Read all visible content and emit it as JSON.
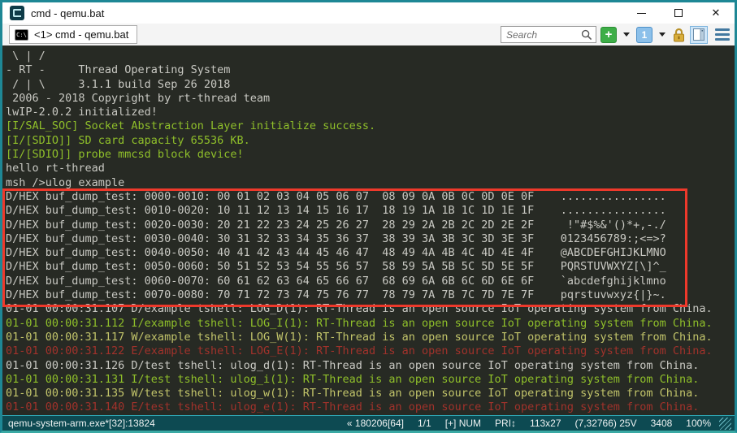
{
  "window": {
    "title": "cmd - qemu.bat",
    "close_glyph": "✕"
  },
  "tabbar": {
    "tab_label": "<1> cmd - qemu.bat",
    "search_placeholder": "Search",
    "new_console_label": "+",
    "console_number_label": "1",
    "cmd_icon_text": "C:\\"
  },
  "terminal": {
    "lines": [
      {
        "text": " \\ | /",
        "color": "default"
      },
      {
        "text": "- RT -     Thread Operating System",
        "color": "default"
      },
      {
        "text": " / | \\     3.1.1 build Sep 26 2018",
        "color": "default"
      },
      {
        "text": " 2006 - 2018 Copyright by rt-thread team",
        "color": "default"
      },
      {
        "text": "lwIP-2.0.2 initialized!",
        "color": "default"
      },
      {
        "text": "[I/SAL_SOC] Socket Abstraction Layer initialize success.",
        "color": "green"
      },
      {
        "text": "[I/[SDIO]] SD card capacity 65536 KB.",
        "color": "green"
      },
      {
        "text": "[I/[SDIO]] probe mmcsd block device!",
        "color": "green"
      },
      {
        "text": "hello rt-thread",
        "color": "default"
      },
      {
        "text": "msh />ulog example",
        "color": "default"
      },
      {
        "text": "D/HEX buf_dump_test: 0000-0010: 00 01 02 03 04 05 06 07  08 09 0A 0B 0C 0D 0E 0F    ................",
        "color": "default"
      },
      {
        "text": "D/HEX buf_dump_test: 0010-0020: 10 11 12 13 14 15 16 17  18 19 1A 1B 1C 1D 1E 1F    ................",
        "color": "default"
      },
      {
        "text": "D/HEX buf_dump_test: 0020-0030: 20 21 22 23 24 25 26 27  28 29 2A 2B 2C 2D 2E 2F     !\"#$%&'()*+,-./",
        "color": "default"
      },
      {
        "text": "D/HEX buf_dump_test: 0030-0040: 30 31 32 33 34 35 36 37  38 39 3A 3B 3C 3D 3E 3F    0123456789:;<=>?",
        "color": "default"
      },
      {
        "text": "D/HEX buf_dump_test: 0040-0050: 40 41 42 43 44 45 46 47  48 49 4A 4B 4C 4D 4E 4F    @ABCDEFGHIJKLMNO",
        "color": "default"
      },
      {
        "text": "D/HEX buf_dump_test: 0050-0060: 50 51 52 53 54 55 56 57  58 59 5A 5B 5C 5D 5E 5F    PQRSTUVWXYZ[\\]^_",
        "color": "default"
      },
      {
        "text": "D/HEX buf_dump_test: 0060-0070: 60 61 62 63 64 65 66 67  68 69 6A 6B 6C 6D 6E 6F    `abcdefghijklmno",
        "color": "default"
      },
      {
        "text": "D/HEX buf_dump_test: 0070-0080: 70 71 72 73 74 75 76 77  78 79 7A 7B 7C 7D 7E 7F    pqrstuvwxyz{|}~.",
        "color": "default"
      },
      {
        "text": "01-01 00:00:31.107 D/example tshell: LOG_D(1): RT-Thread is an open source IoT operating system from China.",
        "color": "default"
      },
      {
        "text": "01-01 00:00:31.112 I/example tshell: LOG_I(1): RT-Thread is an open source IoT operating system from China.",
        "color": "green"
      },
      {
        "text": "01-01 00:00:31.117 W/example tshell: LOG_W(1): RT-Thread is an open source IoT operating system from China.",
        "color": "yellow"
      },
      {
        "text": "01-01 00:00:31.122 E/example tshell: LOG_E(1): RT-Thread is an open source IoT operating system from China.",
        "color": "red"
      },
      {
        "text": "01-01 00:00:31.126 D/test tshell: ulog_d(1): RT-Thread is an open source IoT operating system from China.",
        "color": "default"
      },
      {
        "text": "01-01 00:00:31.131 I/test tshell: ulog_i(1): RT-Thread is an open source IoT operating system from China.",
        "color": "green"
      },
      {
        "text": "01-01 00:00:31.135 W/test tshell: ulog_w(1): RT-Thread is an open source IoT operating system from China.",
        "color": "yellow"
      },
      {
        "text": "01-01 00:00:31.140 E/test tshell: ulog_e(1): RT-Thread is an open source IoT operating system from China.",
        "color": "red"
      }
    ]
  },
  "statusbar": {
    "process": "qemu-system-arm.exe*[32]:13824",
    "items": [
      "« 180206[64]",
      "1/1",
      "[+] NUM",
      "PRI↕",
      "113x27",
      "(7,32766) 25V",
      "3408",
      "100%"
    ]
  },
  "colors": {
    "window_border": "#1e8795",
    "terminal_bg": "#272a24",
    "status_bg": "#0d4a52",
    "highlight_box": "#ee392b",
    "log_info_green": "#8fbf2a",
    "log_warn_yellow": "#c2c46a",
    "log_error_red": "#a1322b",
    "log_default": "#c9c9c3"
  }
}
